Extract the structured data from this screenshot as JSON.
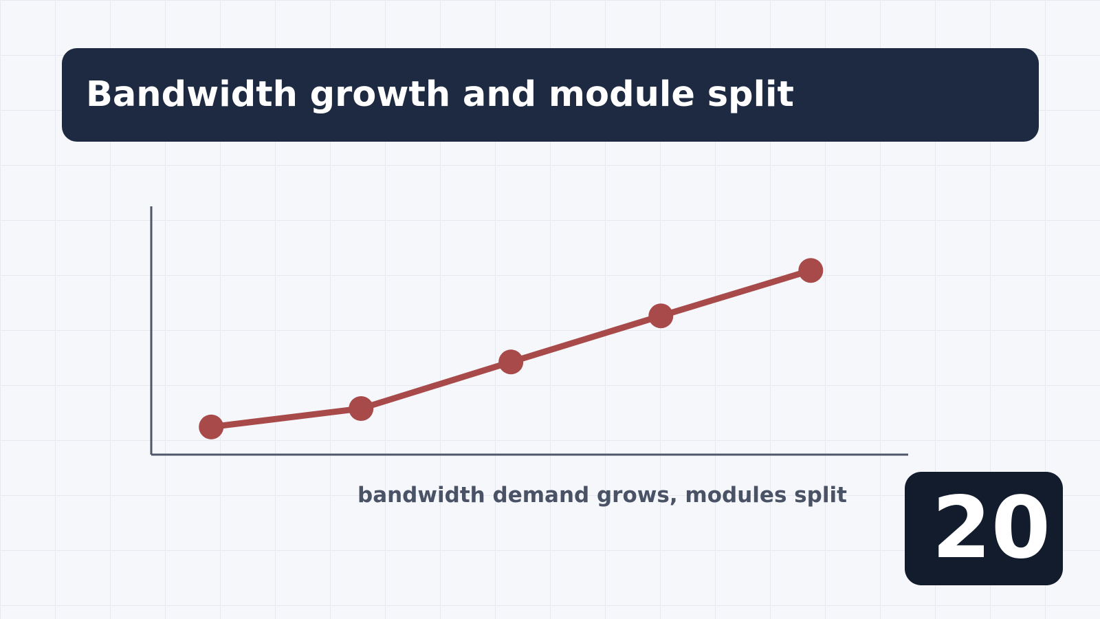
{
  "title": "Bandwidth growth and module split",
  "caption": "bandwidth demand grows, modules split",
  "page_number": "20",
  "colors": {
    "background": "#f5f7fb",
    "title_banner": "#1e2a41",
    "line": "#a84a4a",
    "axis": "#4f5668",
    "caption": "#4a5366",
    "badge": "#131c2c"
  },
  "chart_data": {
    "type": "line",
    "x": [
      1,
      2,
      3,
      4,
      5
    ],
    "series": [
      {
        "values": [
          1.0,
          1.66,
          3.34,
          5.0,
          6.64
        ]
      }
    ],
    "xlim": [
      0.6,
      5.65
    ],
    "ylim": [
      0,
      8.95
    ],
    "x_axis_ticks": false,
    "y_axis_ticks": false,
    "grid": false,
    "legend": "none"
  }
}
